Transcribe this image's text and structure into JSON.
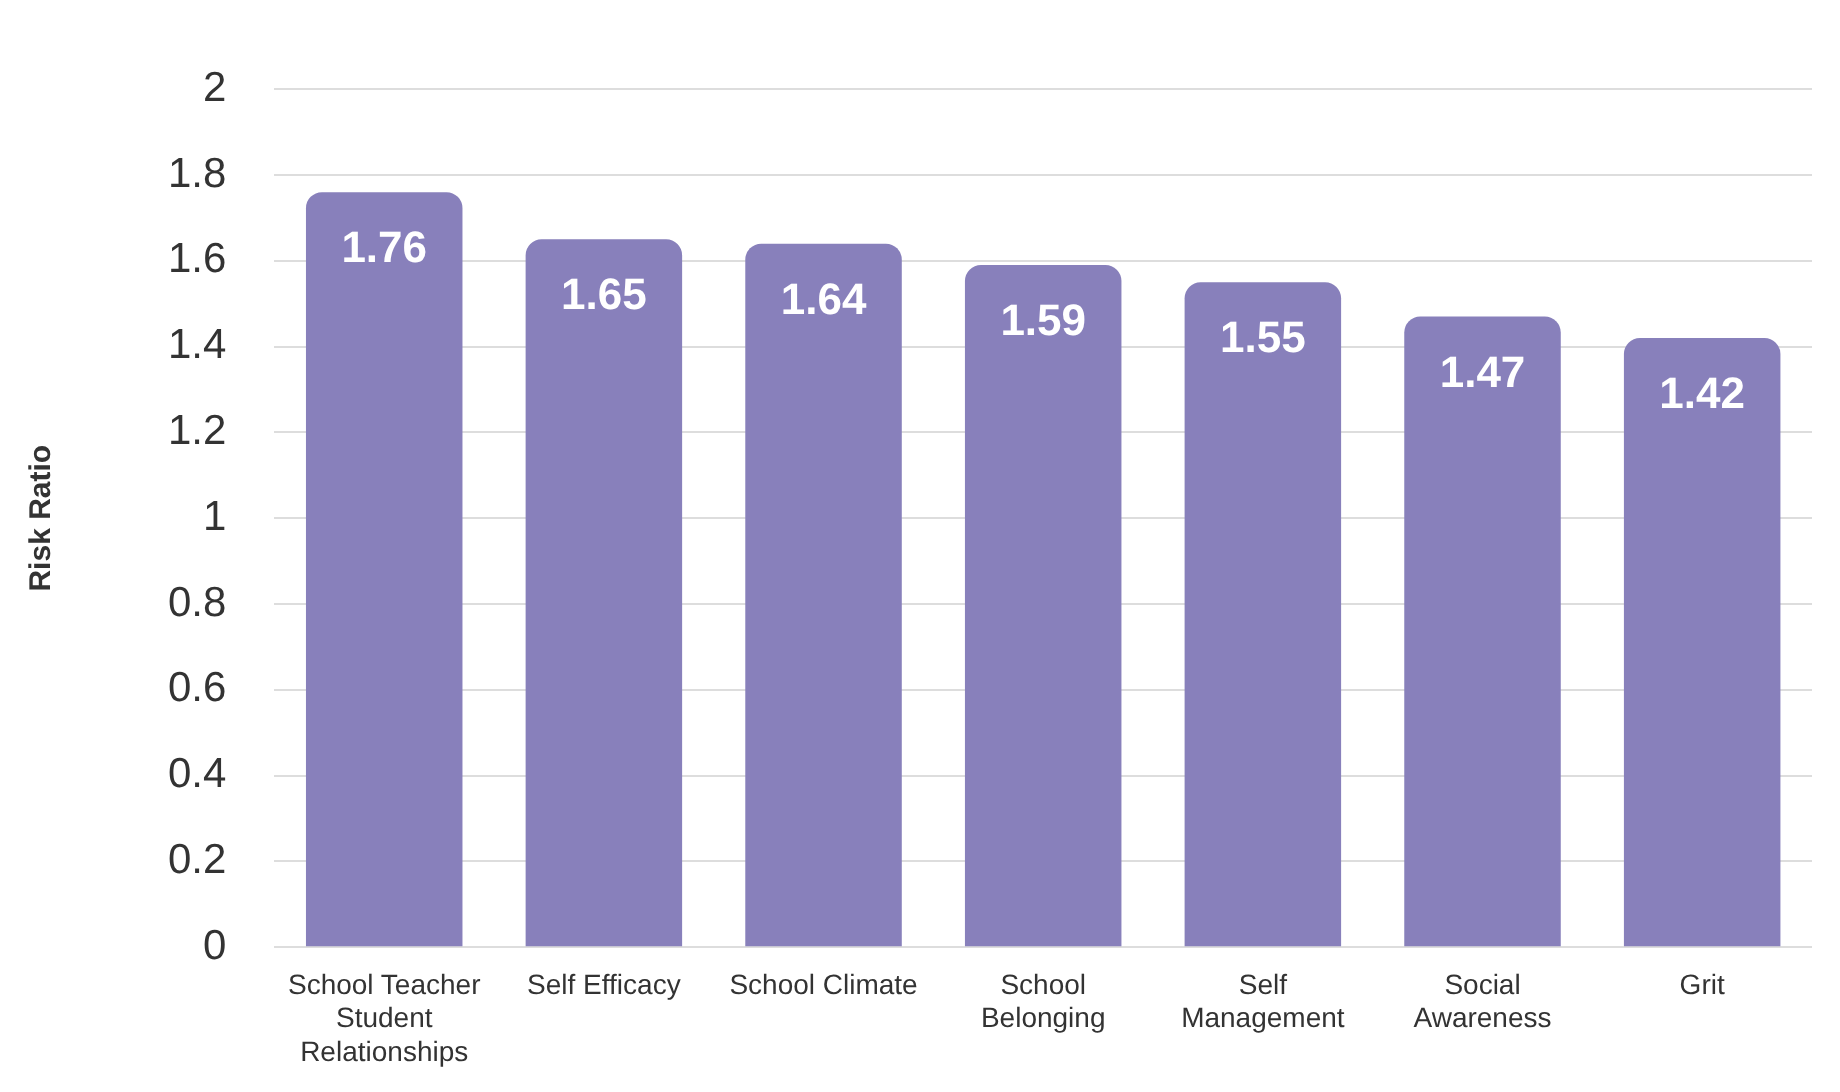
{
  "chart_data": {
    "type": "bar",
    "ylabel": "Risk Ratio",
    "categories": [
      "School Teacher Student Relationships",
      "Self Efficacy",
      "School Climate",
      "School Belonging",
      "Self Management",
      "Social Awareness",
      "Grit"
    ],
    "values": [
      1.76,
      1.65,
      1.64,
      1.59,
      1.55,
      1.47,
      1.42
    ],
    "color": "#8880bb",
    "ylim": [
      0,
      2
    ],
    "yticks": [
      0,
      0.2,
      0.4,
      0.6,
      0.8,
      1,
      1.2,
      1.4,
      1.6,
      1.8,
      2
    ],
    "grid": "y",
    "data_labels": true,
    "legend": false
  }
}
